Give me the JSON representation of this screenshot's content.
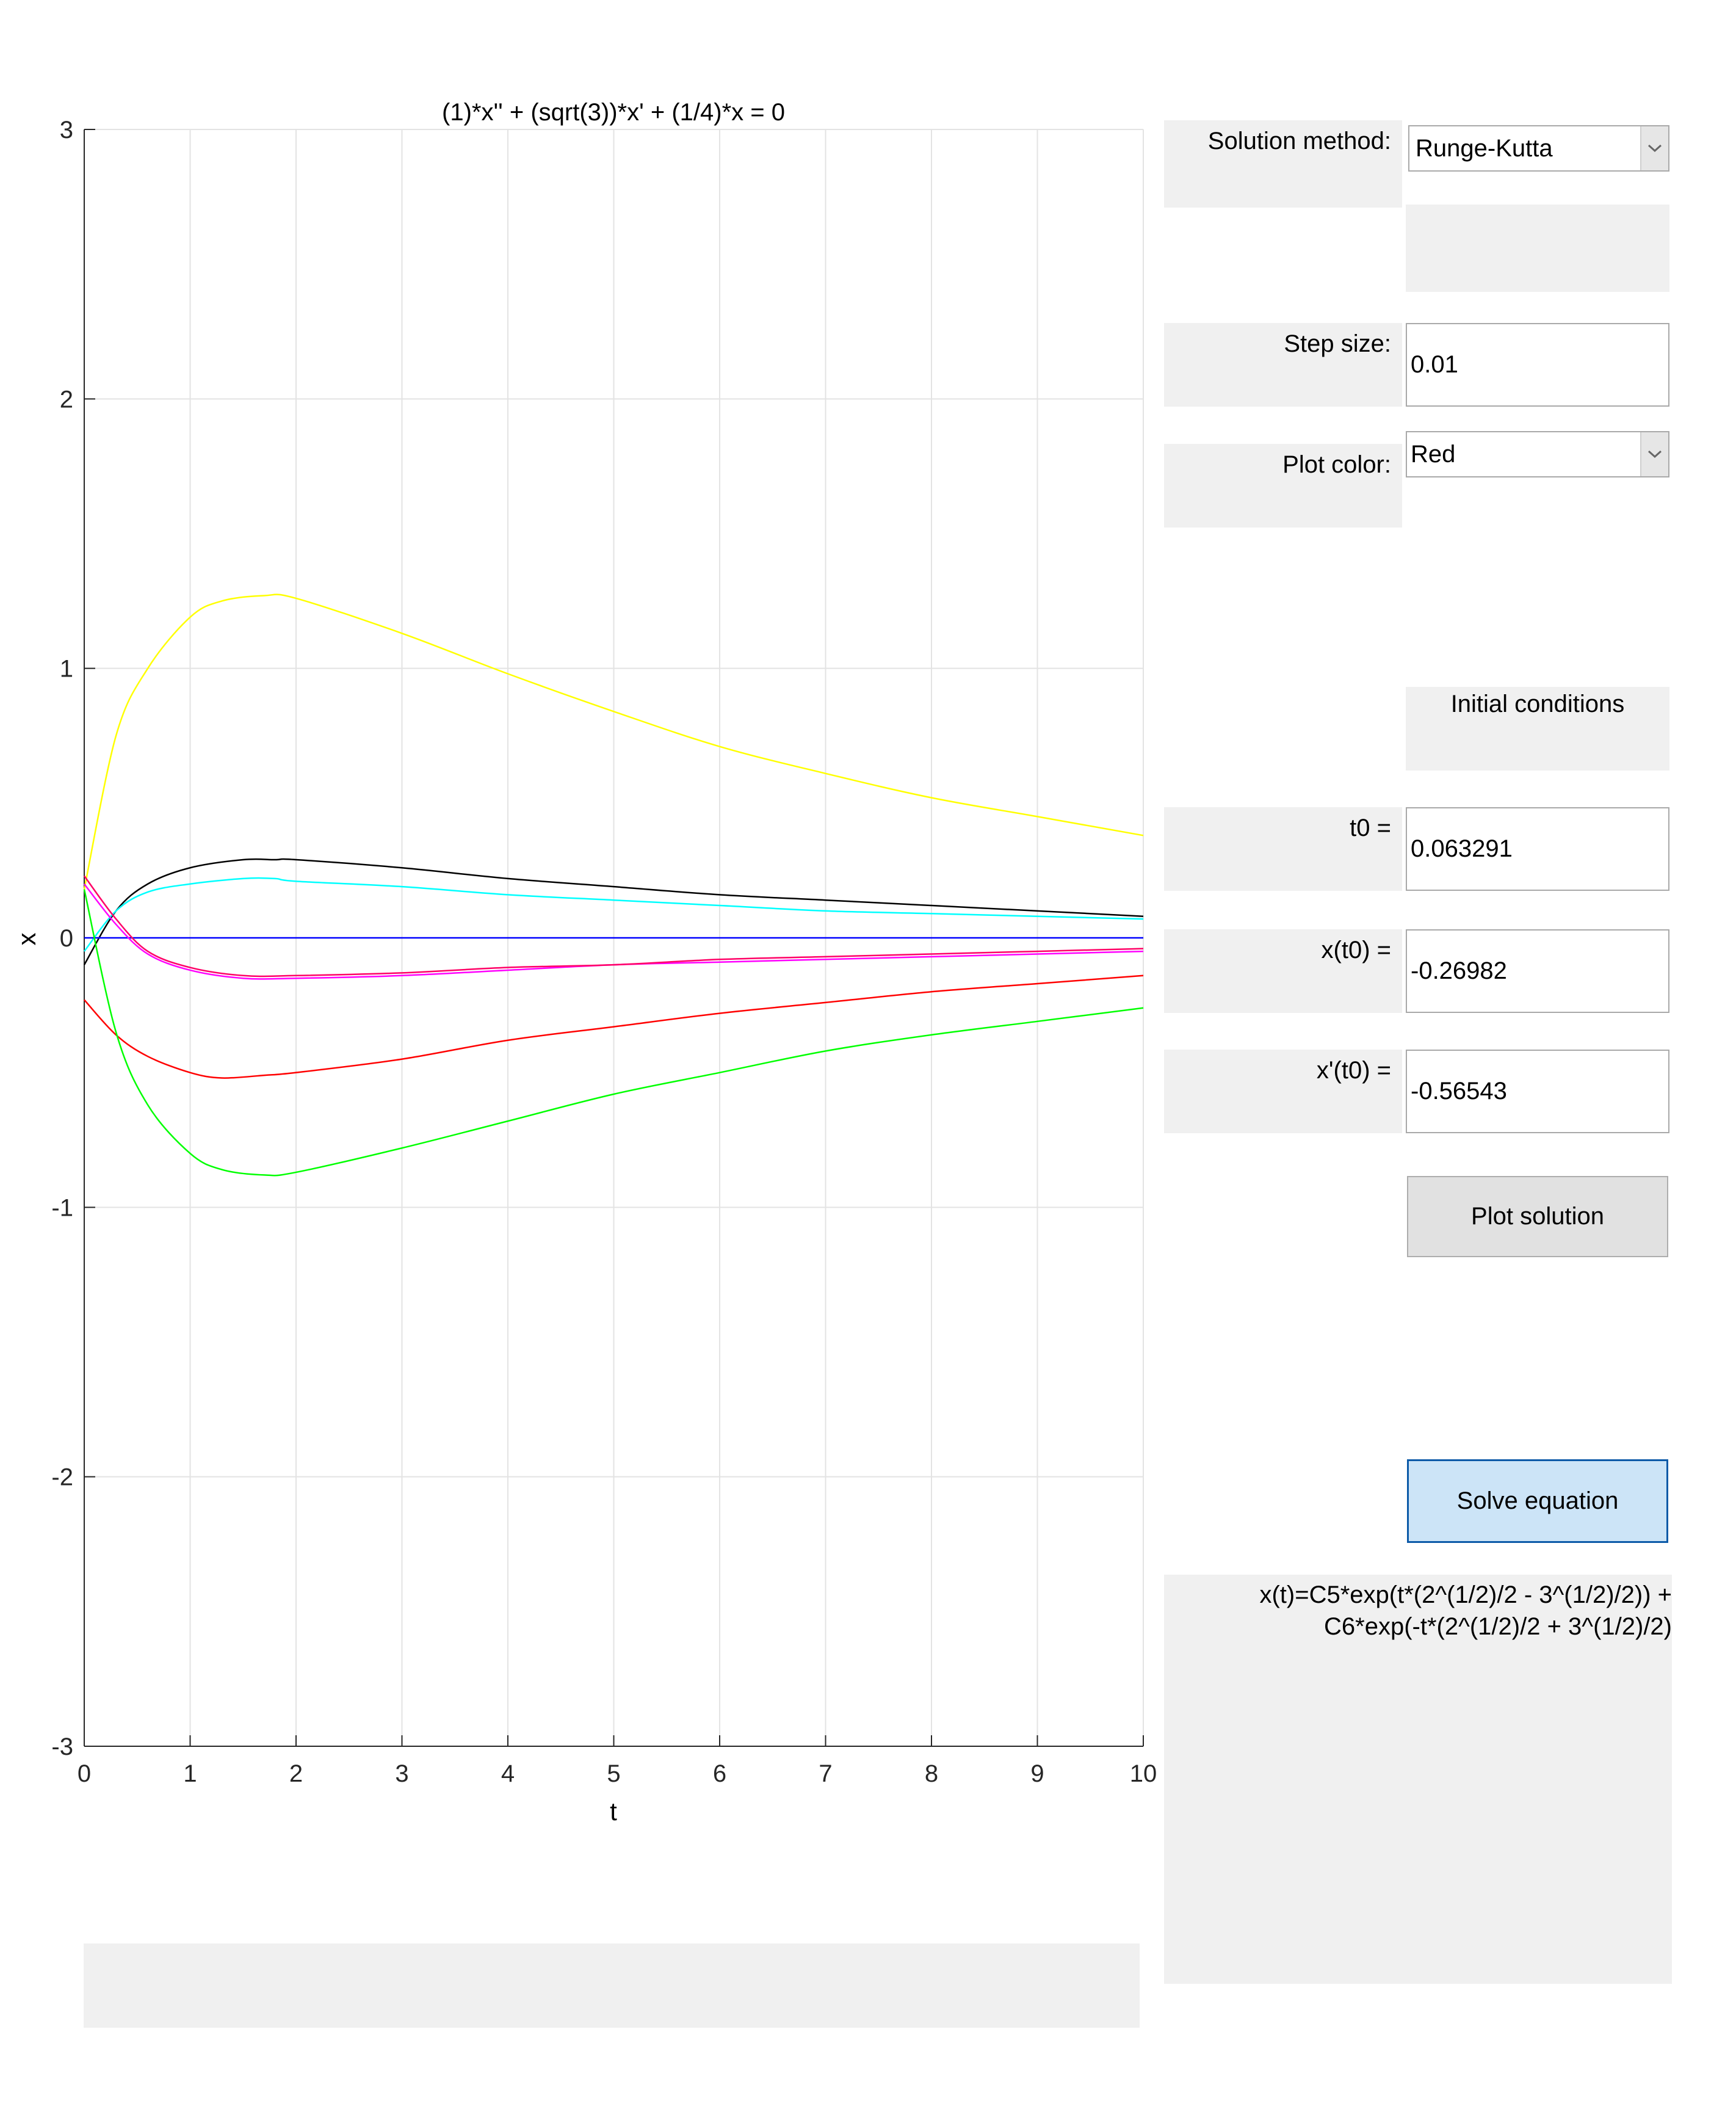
{
  "chart_data": {
    "type": "line",
    "title": "(1)*x'' + (sqrt(3))*x' + (1/4)*x = 0",
    "xlabel": "t",
    "ylabel": "x",
    "xlim": [
      0,
      10
    ],
    "ylim": [
      -3,
      3
    ],
    "xticks": [
      0,
      1,
      2,
      3,
      4,
      5,
      6,
      7,
      8,
      9,
      10
    ],
    "yticks": [
      -3,
      -2,
      -1,
      0,
      1,
      2,
      3
    ],
    "grid": true,
    "series": [
      {
        "color": "#ffff00",
        "x": [
          0,
          0.3,
          0.6,
          1,
          1.3,
          1.7,
          2,
          3,
          4,
          5,
          6,
          7,
          8,
          9,
          10
        ],
        "y": [
          0.18,
          0.75,
          1.0,
          1.19,
          1.25,
          1.27,
          1.26,
          1.13,
          0.98,
          0.84,
          0.71,
          0.61,
          0.52,
          0.45,
          0.38
        ]
      },
      {
        "color": "#000000",
        "x": [
          0,
          0.3,
          0.6,
          1,
          1.5,
          1.8,
          2,
          3,
          4,
          5,
          6,
          7,
          8,
          9,
          10
        ],
        "y": [
          -0.1,
          0.1,
          0.2,
          0.26,
          0.29,
          0.29,
          0.29,
          0.26,
          0.22,
          0.19,
          0.16,
          0.14,
          0.12,
          0.1,
          0.08
        ]
      },
      {
        "color": "#00ffff",
        "x": [
          0,
          0.3,
          0.6,
          1,
          1.5,
          1.8,
          2,
          3,
          4,
          5,
          6,
          7,
          8,
          9,
          10
        ],
        "y": [
          -0.05,
          0.1,
          0.17,
          0.2,
          0.22,
          0.22,
          0.21,
          0.19,
          0.16,
          0.14,
          0.12,
          0.1,
          0.09,
          0.08,
          0.07
        ]
      },
      {
        "color": "#0000ff",
        "x": [
          0,
          10
        ],
        "y": [
          0,
          0
        ]
      },
      {
        "color": "#ff00ff",
        "x": [
          0,
          0.3,
          0.6,
          1,
          1.5,
          2,
          3,
          4,
          5,
          6,
          7,
          8,
          9,
          10
        ],
        "y": [
          0.2,
          0.05,
          -0.06,
          -0.12,
          -0.15,
          -0.15,
          -0.14,
          -0.12,
          -0.1,
          -0.09,
          -0.08,
          -0.07,
          -0.06,
          -0.05
        ]
      },
      {
        "color": "#ff0066",
        "x": [
          0,
          0.3,
          0.6,
          1,
          1.5,
          2,
          3,
          4,
          5,
          6,
          7,
          8,
          9,
          10
        ],
        "y": [
          0.23,
          0.07,
          -0.05,
          -0.11,
          -0.14,
          -0.14,
          -0.13,
          -0.11,
          -0.1,
          -0.08,
          -0.07,
          -0.06,
          -0.05,
          -0.04
        ]
      },
      {
        "color": "#ff0000",
        "x": [
          0,
          0.3,
          0.6,
          1,
          1.3,
          1.7,
          2,
          3,
          4,
          5,
          6,
          7,
          8,
          9,
          10
        ],
        "y": [
          -0.23,
          -0.36,
          -0.44,
          -0.5,
          -0.52,
          -0.51,
          -0.5,
          -0.45,
          -0.38,
          -0.33,
          -0.28,
          -0.24,
          -0.2,
          -0.17,
          -0.14
        ]
      },
      {
        "color": "#00ff00",
        "x": [
          0,
          0.3,
          0.6,
          1,
          1.3,
          1.7,
          2,
          3,
          4,
          5,
          6,
          7,
          8,
          9,
          10
        ],
        "y": [
          0.18,
          -0.35,
          -0.62,
          -0.8,
          -0.86,
          -0.88,
          -0.87,
          -0.78,
          -0.68,
          -0.58,
          -0.5,
          -0.42,
          -0.36,
          -0.31,
          -0.26
        ]
      }
    ]
  },
  "controls": {
    "method_label": "Solution method:",
    "method_value": "Runge-Kutta",
    "step_label": "Step size:",
    "step_value": "0.01",
    "color_label": "Plot color:",
    "color_value": "Red",
    "ic_title": "Initial conditions",
    "t0_label": "t0 =",
    "t0_value": "0.063291",
    "x0_label": "x(t0) =",
    "x0_value": "-0.26982",
    "xp0_label": "x'(t0) =",
    "xp0_value": "-0.56543",
    "plot_button": "Plot solution",
    "solve_button": "Solve equation",
    "solution_line1": "x(t)=C5*exp(t*(2^(1/2)/2 - 3^(1/2)/2)) +",
    "solution_line2": "C6*exp(-t*(2^(1/2)/2 + 3^(1/2)/2)"
  },
  "icons": {
    "dropdown": "chevron-down-icon"
  }
}
